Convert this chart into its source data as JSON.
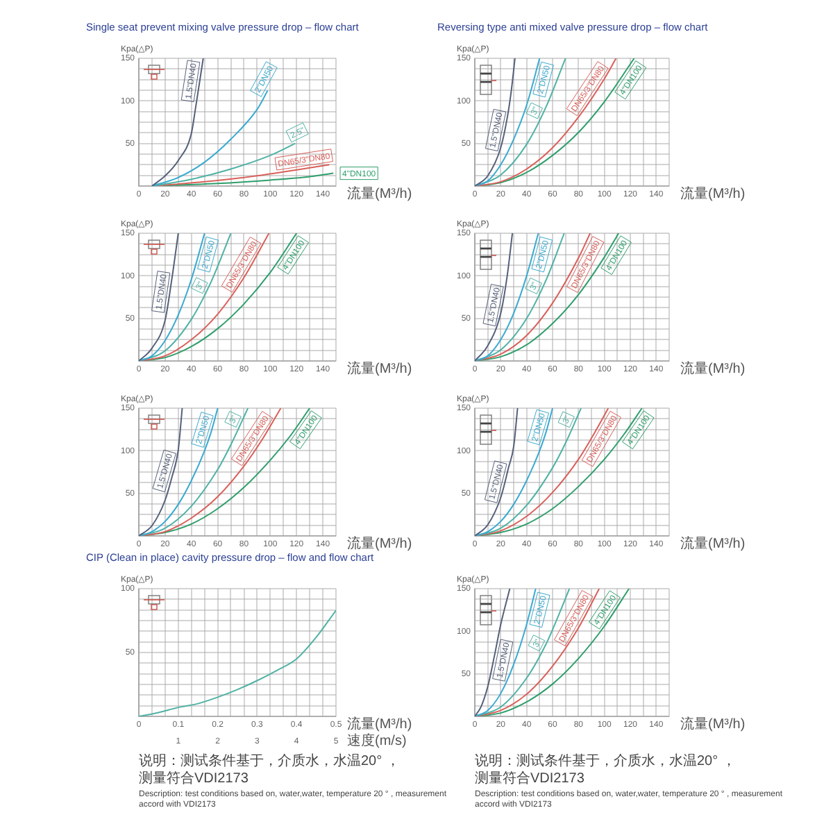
{
  "chart_data": [
    {
      "type": "line",
      "title": "Single seat prevent mixing valve pressure drop – flow chart",
      "xlabel": "流量(M³/h)",
      "ylabel": "Kpa(△P)",
      "xlim": [
        0,
        150
      ],
      "ylim": [
        0,
        150
      ],
      "xticks": [
        0,
        {
          "value": 10,
          "label": null
        },
        20,
        {
          "value": 30,
          "label": null
        },
        40,
        {
          "value": 50,
          "label": null
        },
        60,
        {
          "value": 70,
          "label": null
        },
        80,
        {
          "value": 90,
          "label": null
        },
        100,
        {
          "value": 110,
          "label": null
        },
        120,
        {
          "value": 130,
          "label": null
        },
        140,
        {
          "value": 150,
          "label": null
        }
      ],
      "yticks": [
        {
          "value": 0,
          "label": null
        },
        {
          "value": 12.5,
          "label": null
        },
        {
          "value": 25,
          "label": null
        },
        {
          "value": 37.5,
          "label": null
        },
        50,
        {
          "value": 62.5,
          "label": null
        },
        {
          "value": 75,
          "label": null
        },
        {
          "value": 87.5,
          "label": null
        },
        100,
        {
          "value": 112.5,
          "label": null
        },
        {
          "value": 125,
          "label": null
        },
        {
          "value": 137.5,
          "label": null
        },
        150
      ],
      "grid": true,
      "series": [
        {
          "name": "1.5\"DN40",
          "color": "#55607a",
          "x": [
            10,
            20,
            30,
            40,
            43,
            46,
            49
          ],
          "values": [
            0,
            12,
            30,
            62,
            90,
            120,
            150
          ]
        },
        {
          "name": "2\"DN50",
          "color": "#3aaad0",
          "x": [
            10,
            30,
            50,
            70,
            90,
            98
          ],
          "values": [
            0,
            10,
            28,
            55,
            90,
            112
          ]
        },
        {
          "name": "2.5\"",
          "color": "#4fb2a4",
          "x": [
            10,
            40,
            70,
            100,
            119
          ],
          "values": [
            0,
            8,
            20,
            36,
            50
          ]
        },
        {
          "name": "DN65/3\"DN80",
          "color": "#d9605a",
          "x": [
            10,
            50,
            90,
            120,
            145
          ],
          "values": [
            0,
            5,
            12,
            19,
            25
          ]
        },
        {
          "name": "4\"DN100",
          "color": "#2f9e6c",
          "x": [
            10,
            60,
            100,
            130,
            148
          ],
          "values": [
            0,
            3,
            7,
            11,
            15
          ]
        }
      ]
    },
    {
      "type": "line",
      "title": "Reversing type anti mixed valve pressure drop – flow chart",
      "xlabel": "流量(M³/h)",
      "ylabel": "Kpa(△P)",
      "xlim": [
        0,
        150
      ],
      "ylim": [
        0,
        150
      ],
      "xticks": [
        0,
        {
          "value": 10,
          "label": null
        },
        20,
        {
          "value": 30,
          "label": null
        },
        40,
        {
          "value": 50,
          "label": null
        },
        60,
        {
          "value": 70,
          "label": null
        },
        80,
        {
          "value": 90,
          "label": null
        },
        100,
        {
          "value": 110,
          "label": null
        },
        120,
        {
          "value": 130,
          "label": null
        },
        140,
        {
          "value": 150,
          "label": null
        }
      ],
      "yticks": [
        {
          "value": 0,
          "label": null
        },
        {
          "value": 12.5,
          "label": null
        },
        {
          "value": 25,
          "label": null
        },
        {
          "value": 37.5,
          "label": null
        },
        50,
        {
          "value": 62.5,
          "label": null
        },
        {
          "value": 75,
          "label": null
        },
        {
          "value": 87.5,
          "label": null
        },
        100,
        {
          "value": 112.5,
          "label": null
        },
        {
          "value": 125,
          "label": null
        },
        {
          "value": 137.5,
          "label": null
        },
        150
      ],
      "grid": true,
      "series": [
        {
          "name": "1.5\"DN40",
          "color": "#55607a",
          "x": [
            0,
            10,
            20,
            25,
            28,
            31
          ],
          "values": [
            0,
            12,
            45,
            80,
            110,
            150
          ]
        },
        {
          "name": "2\"DN50",
          "color": "#3aaad0",
          "x": [
            0,
            10,
            20,
            30,
            40,
            50
          ],
          "values": [
            0,
            6,
            25,
            55,
            95,
            150
          ]
        },
        {
          "name": "3\"",
          "color": "#4fb2a4",
          "x": [
            0,
            20,
            40,
            55,
            70
          ],
          "values": [
            0,
            13,
            49,
            93,
            150
          ]
        },
        {
          "name": "DN65/3\"DN80",
          "color": "#d9605a",
          "x": [
            0,
            20,
            40,
            60,
            80,
            100,
            109
          ],
          "values": [
            0,
            5,
            20,
            45,
            81,
            126,
            150
          ]
        },
        {
          "name": "4\"DN100",
          "color": "#2f9e6c",
          "x": [
            0,
            20,
            40,
            60,
            80,
            100,
            123
          ],
          "values": [
            0,
            4,
            16,
            36,
            63,
            99,
            150
          ]
        }
      ]
    },
    {
      "type": "line",
      "xlabel": "流量(M³/h)",
      "ylabel": "Kpa(△P)",
      "xlim": [
        0,
        150
      ],
      "ylim": [
        0,
        150
      ],
      "xticks": [
        0,
        {
          "value": 10,
          "label": null
        },
        20,
        {
          "value": 30,
          "label": null
        },
        40,
        {
          "value": 50,
          "label": null
        },
        60,
        {
          "value": 70,
          "label": null
        },
        80,
        {
          "value": 90,
          "label": null
        },
        100,
        {
          "value": 110,
          "label": null
        },
        120,
        {
          "value": 130,
          "label": null
        },
        140,
        {
          "value": 150,
          "label": null
        }
      ],
      "yticks": [
        {
          "value": 0,
          "label": null
        },
        {
          "value": 12.5,
          "label": null
        },
        {
          "value": 25,
          "label": null
        },
        {
          "value": 37.5,
          "label": null
        },
        50,
        {
          "value": 62.5,
          "label": null
        },
        {
          "value": 75,
          "label": null
        },
        {
          "value": 87.5,
          "label": null
        },
        100,
        {
          "value": 112.5,
          "label": null
        },
        {
          "value": 125,
          "label": null
        },
        {
          "value": 137.5,
          "label": null
        },
        150
      ],
      "grid": true,
      "series": [
        {
          "name": "1.5\"DN40",
          "color": "#55607a",
          "x": [
            0,
            10,
            20,
            25,
            30
          ],
          "values": [
            0,
            15,
            48,
            95,
            150
          ]
        },
        {
          "name": "2\"DN50",
          "color": "#3aaad0",
          "x": [
            0,
            10,
            20,
            30,
            40,
            50
          ],
          "values": [
            0,
            6,
            24,
            54,
            96,
            150
          ]
        },
        {
          "name": "3\"",
          "color": "#4fb2a4",
          "x": [
            0,
            20,
            40,
            55,
            70
          ],
          "values": [
            0,
            12,
            49,
            93,
            150
          ]
        },
        {
          "name": "DN65/3\"DN80",
          "color": "#d9605a",
          "x": [
            0,
            20,
            40,
            60,
            80,
            99
          ],
          "values": [
            0,
            6,
            25,
            55,
            98,
            150
          ]
        },
        {
          "name": "4\"DN100",
          "color": "#2f9e6c",
          "x": [
            0,
            20,
            40,
            60,
            80,
            100,
            120
          ],
          "values": [
            0,
            4,
            17,
            38,
            67,
            104,
            150
          ]
        }
      ]
    },
    {
      "type": "line",
      "xlabel": "流量(M³/h)",
      "ylabel": "Kpa(△P)",
      "xlim": [
        0,
        150
      ],
      "ylim": [
        0,
        150
      ],
      "xticks": [
        0,
        {
          "value": 10,
          "label": null
        },
        20,
        {
          "value": 30,
          "label": null
        },
        40,
        {
          "value": 50,
          "label": null
        },
        60,
        {
          "value": 70,
          "label": null
        },
        80,
        {
          "value": 90,
          "label": null
        },
        100,
        {
          "value": 110,
          "label": null
        },
        120,
        {
          "value": 130,
          "label": null
        },
        140,
        {
          "value": 150,
          "label": null
        }
      ],
      "yticks": [
        {
          "value": 0,
          "label": null
        },
        {
          "value": 12.5,
          "label": null
        },
        {
          "value": 25,
          "label": null
        },
        {
          "value": 37.5,
          "label": null
        },
        50,
        {
          "value": 62.5,
          "label": null
        },
        {
          "value": 75,
          "label": null
        },
        {
          "value": 87.5,
          "label": null
        },
        100,
        {
          "value": 112.5,
          "label": null
        },
        {
          "value": 125,
          "label": null
        },
        {
          "value": 137.5,
          "label": null
        },
        150
      ],
      "grid": true,
      "series": [
        {
          "name": "1.5\"DN40",
          "color": "#55607a",
          "x": [
            0,
            10,
            20,
            25,
            29
          ],
          "values": [
            0,
            18,
            56,
            100,
            150
          ]
        },
        {
          "name": "2\"DN50",
          "color": "#3aaad0",
          "x": [
            0,
            10,
            20,
            30,
            40,
            49
          ],
          "values": [
            0,
            6,
            25,
            56,
            100,
            150
          ]
        },
        {
          "name": "3\"",
          "color": "#4fb2a4",
          "x": [
            0,
            20,
            40,
            55,
            69
          ],
          "values": [
            0,
            13,
            50,
            95,
            150
          ]
        },
        {
          "name": "DN65/3\"DN80",
          "color": "#d9605a",
          "x": [
            0,
            20,
            40,
            60,
            80,
            89
          ],
          "values": [
            0,
            8,
            30,
            68,
            121,
            150
          ]
        },
        {
          "name": "4\"DN100",
          "color": "#2f9e6c",
          "x": [
            0,
            20,
            40,
            60,
            80,
            100,
            111
          ],
          "values": [
            0,
            5,
            19,
            44,
            78,
            122,
            150
          ]
        }
      ]
    },
    {
      "type": "line",
      "xlabel": "流量(M³/h)",
      "ylabel": "Kpa(△P)",
      "xlim": [
        0,
        150
      ],
      "ylim": [
        0,
        150
      ],
      "xticks": [
        0,
        {
          "value": 10,
          "label": null
        },
        20,
        {
          "value": 30,
          "label": null
        },
        40,
        {
          "value": 50,
          "label": null
        },
        60,
        {
          "value": 70,
          "label": null
        },
        80,
        {
          "value": 90,
          "label": null
        },
        100,
        {
          "value": 110,
          "label": null
        },
        120,
        {
          "value": 130,
          "label": null
        },
        140,
        {
          "value": 150,
          "label": null
        }
      ],
      "yticks": [
        {
          "value": 0,
          "label": null
        },
        {
          "value": 12.5,
          "label": null
        },
        {
          "value": 25,
          "label": null
        },
        {
          "value": 37.5,
          "label": null
        },
        50,
        {
          "value": 62.5,
          "label": null
        },
        {
          "value": 75,
          "label": null
        },
        {
          "value": 87.5,
          "label": null
        },
        100,
        {
          "value": 112.5,
          "label": null
        },
        {
          "value": 125,
          "label": null
        },
        {
          "value": 137.5,
          "label": null
        },
        150
      ],
      "grid": true,
      "series": [
        {
          "name": "1.5\"DN40",
          "color": "#55607a",
          "x": [
            0,
            10,
            20,
            25,
            30,
            33
          ],
          "values": [
            0,
            12,
            42,
            68,
            101,
            150
          ]
        },
        {
          "name": "2\"DN50",
          "color": "#3aaad0",
          "x": [
            0,
            10,
            20,
            30,
            40,
            50,
            55,
            60
          ],
          "values": [
            0,
            5,
            17,
            37,
            65,
            100,
            122,
            150
          ]
        },
        {
          "name": "3\"",
          "color": "#4fb2a4",
          "x": [
            0,
            20,
            40,
            60,
            70,
            83
          ],
          "values": [
            0,
            9,
            35,
            78,
            107,
            150
          ]
        },
        {
          "name": "DN65/3\"DN80",
          "color": "#d9605a",
          "x": [
            0,
            20,
            40,
            60,
            80,
            95,
            108
          ],
          "values": [
            0,
            5,
            21,
            46,
            82,
            116,
            150
          ]
        },
        {
          "name": "4\"DN100",
          "color": "#2f9e6c",
          "x": [
            0,
            20,
            40,
            60,
            80,
            100,
            115,
            130
          ],
          "values": [
            0,
            4,
            14,
            32,
            57,
            89,
            117,
            150
          ]
        }
      ]
    },
    {
      "type": "line",
      "xlabel": "流量(M³/h)",
      "ylabel": "Kpa(△P)",
      "xlim": [
        0,
        150
      ],
      "ylim": [
        0,
        150
      ],
      "xticks": [
        0,
        {
          "value": 10,
          "label": null
        },
        20,
        {
          "value": 30,
          "label": null
        },
        40,
        {
          "value": 50,
          "label": null
        },
        60,
        {
          "value": 70,
          "label": null
        },
        80,
        {
          "value": 90,
          "label": null
        },
        100,
        {
          "value": 110,
          "label": null
        },
        120,
        {
          "value": 130,
          "label": null
        },
        140,
        {
          "value": 150,
          "label": null
        }
      ],
      "yticks": [
        {
          "value": 0,
          "label": null
        },
        {
          "value": 12.5,
          "label": null
        },
        {
          "value": 25,
          "label": null
        },
        {
          "value": 37.5,
          "label": null
        },
        50,
        {
          "value": 62.5,
          "label": null
        },
        {
          "value": 75,
          "label": null
        },
        {
          "value": 87.5,
          "label": null
        },
        100,
        {
          "value": 112.5,
          "label": null
        },
        {
          "value": 125,
          "label": null
        },
        {
          "value": 137.5,
          "label": null
        },
        150
      ],
      "grid": true,
      "series": [
        {
          "name": "1.5\"DN40",
          "color": "#55607a",
          "x": [
            0,
            10,
            20,
            26,
            30,
            33
          ],
          "values": [
            0,
            13,
            45,
            80,
            105,
            150
          ]
        },
        {
          "name": "2\"DN50",
          "color": "#3aaad0",
          "x": [
            0,
            10,
            20,
            30,
            40,
            50,
            55,
            60
          ],
          "values": [
            0,
            5,
            17,
            37,
            65,
            100,
            122,
            150
          ]
        },
        {
          "name": "3\"",
          "color": "#4fb2a4",
          "x": [
            0,
            20,
            40,
            60,
            70,
            82
          ],
          "values": [
            0,
            9,
            36,
            80,
            109,
            150
          ]
        },
        {
          "name": "DN65/3\"DN80",
          "color": "#d9605a",
          "x": [
            0,
            20,
            40,
            60,
            80,
            95,
            103
          ],
          "values": [
            0,
            6,
            23,
            51,
            90,
            128,
            150
          ]
        },
        {
          "name": "4\"DN100",
          "color": "#2f9e6c",
          "x": [
            0,
            20,
            40,
            60,
            80,
            100,
            115,
            129
          ],
          "values": [
            0,
            4,
            14,
            32,
            58,
            90,
            119,
            150
          ]
        }
      ]
    },
    {
      "type": "line",
      "title": "CIP (Clean in place) cavity pressure drop – flow and flow chart",
      "xlabel": "流量(M³/h)",
      "x2label": "速度(m/s)",
      "ylabel": "Kpa(△P)",
      "xlim": [
        0,
        0.5
      ],
      "ylim": [
        0,
        100
      ],
      "x2lim": [
        0,
        5
      ],
      "xticks": [
        0,
        {
          "value": 0.033,
          "label": null
        },
        {
          "value": 0.067,
          "label": null
        },
        0.1,
        {
          "value": 0.133,
          "label": null
        },
        {
          "value": 0.167,
          "label": null
        },
        0.2,
        {
          "value": 0.233,
          "label": null
        },
        {
          "value": 0.267,
          "label": null
        },
        0.3,
        {
          "value": 0.333,
          "label": null
        },
        {
          "value": 0.367,
          "label": null
        },
        0.4,
        {
          "value": 0.433,
          "label": null
        },
        {
          "value": 0.467,
          "label": null
        },
        0.5
      ],
      "yticks": [
        {
          "value": 0,
          "label": null
        },
        {
          "value": 8.33,
          "label": null
        },
        {
          "value": 16.67,
          "label": null
        },
        {
          "value": 25,
          "label": null
        },
        {
          "value": 33.33,
          "label": null
        },
        {
          "value": 41.67,
          "label": null
        },
        50,
        {
          "value": 58.33,
          "label": null
        },
        {
          "value": 66.67,
          "label": null
        },
        {
          "value": 75,
          "label": null
        },
        {
          "value": 83.33,
          "label": null
        },
        {
          "value": 91.67,
          "label": null
        },
        100
      ],
      "x2ticks": [
        1,
        2,
        3,
        4,
        5
      ],
      "grid": true,
      "series": [
        {
          "color": "#4fb2a4",
          "x": [
            0,
            0.05,
            0.1,
            0.15,
            0.2,
            0.25,
            0.3,
            0.35,
            0.4,
            0.45,
            0.5
          ],
          "values": [
            0,
            3,
            7,
            10,
            15,
            21,
            28,
            36,
            45,
            62,
            83
          ]
        }
      ],
      "annotations": [
        "说明：测试条件基于，介质水，水温20° ，测量符合VDI2173",
        "Description: test conditions based on, water,water, temperature 20 ° , measurement accord with VDI2173"
      ]
    },
    {
      "type": "line",
      "xlabel": "流量(M³/h)",
      "ylabel": "Kpa(△P)",
      "xlim": [
        0,
        150
      ],
      "ylim": [
        0,
        150
      ],
      "xticks": [
        0,
        {
          "value": 10,
          "label": null
        },
        20,
        {
          "value": 30,
          "label": null
        },
        40,
        {
          "value": 50,
          "label": null
        },
        60,
        {
          "value": 70,
          "label": null
        },
        80,
        {
          "value": 90,
          "label": null
        },
        100,
        {
          "value": 110,
          "label": null
        },
        120,
        {
          "value": 130,
          "label": null
        },
        140,
        {
          "value": 150,
          "label": null
        }
      ],
      "yticks": [
        {
          "value": 0,
          "label": null
        },
        {
          "value": 12.5,
          "label": null
        },
        {
          "value": 25,
          "label": null
        },
        {
          "value": 37.5,
          "label": null
        },
        50,
        {
          "value": 62.5,
          "label": null
        },
        {
          "value": 75,
          "label": null
        },
        {
          "value": 87.5,
          "label": null
        },
        100,
        {
          "value": 112.5,
          "label": null
        },
        {
          "value": 125,
          "label": null
        },
        {
          "value": 137.5,
          "label": null
        },
        150
      ],
      "grid": true,
      "series": [
        {
          "name": "1.5\"DN40",
          "color": "#55607a",
          "x": [
            0,
            5,
            10,
            15,
            20,
            27
          ],
          "values": [
            0,
            12,
            35,
            70,
            108,
            150
          ]
        },
        {
          "name": "2\"DN50",
          "color": "#3aaad0",
          "x": [
            0,
            10,
            20,
            30,
            40,
            47
          ],
          "values": [
            0,
            7,
            27,
            61,
            108,
            150
          ]
        },
        {
          "name": "3\"",
          "color": "#4fb2a4",
          "x": [
            0,
            20,
            40,
            55,
            65,
            73
          ],
          "values": [
            0,
            11,
            45,
            85,
            120,
            150
          ]
        },
        {
          "name": "DN65/3\"DN80",
          "color": "#d9605a",
          "x": [
            0,
            20,
            40,
            60,
            80,
            96
          ],
          "values": [
            0,
            7,
            26,
            59,
            104,
            150
          ]
        },
        {
          "name": "4\"DN100",
          "color": "#2f9e6c",
          "x": [
            0,
            20,
            40,
            60,
            80,
            100,
            119
          ],
          "values": [
            0,
            4,
            17,
            38,
            68,
            106,
            150
          ]
        }
      ],
      "annotations": [
        "说明：测试条件基于，介质水，水温20° ，测量符合VDI2173",
        "Description: test conditions based on, water,water, temperature 20 ° , measurement accord with VDI2173"
      ]
    }
  ]
}
